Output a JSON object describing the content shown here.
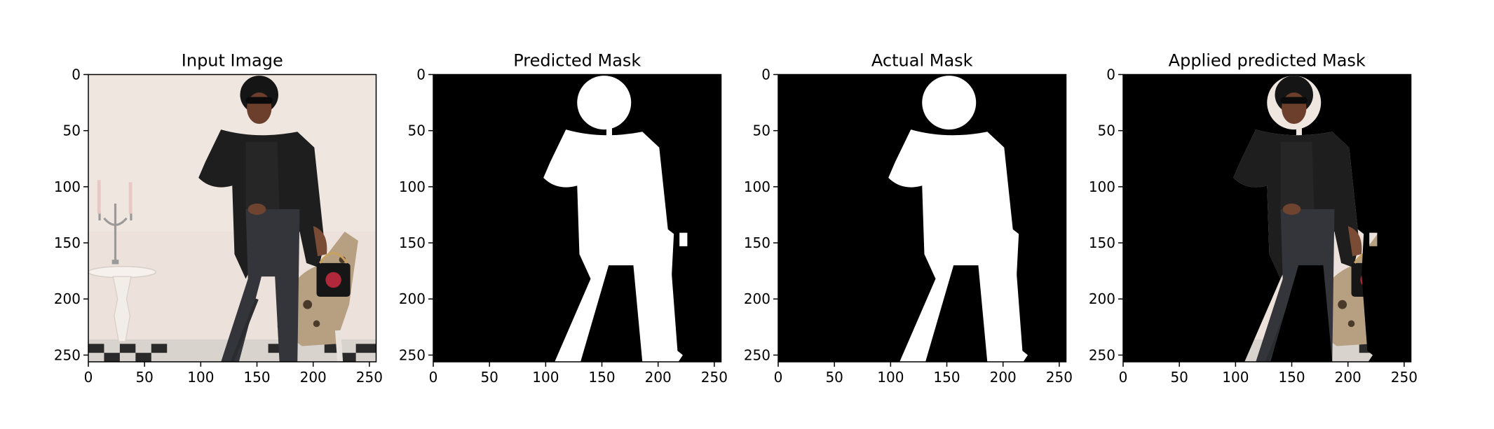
{
  "chart_data": [
    {
      "type": "image",
      "title": "Input Image",
      "xlabel": "",
      "ylabel": "",
      "xlim": [
        0,
        256
      ],
      "ylim": [
        256,
        0
      ],
      "xticks": [
        0,
        50,
        100,
        150,
        200,
        250
      ],
      "yticks": [
        0,
        50,
        100,
        150,
        200,
        250
      ],
      "content": "photo"
    },
    {
      "type": "image",
      "title": "Predicted Mask",
      "xlabel": "",
      "ylabel": "",
      "xlim": [
        0,
        256
      ],
      "ylim": [
        256,
        0
      ],
      "xticks": [
        0,
        50,
        100,
        150,
        200,
        250
      ],
      "yticks": [
        0,
        50,
        100,
        150,
        200,
        250
      ],
      "content": "binary-mask"
    },
    {
      "type": "image",
      "title": "Actual Mask",
      "xlabel": "",
      "ylabel": "",
      "xlim": [
        0,
        256
      ],
      "ylim": [
        256,
        0
      ],
      "xticks": [
        0,
        50,
        100,
        150,
        200,
        250
      ],
      "yticks": [
        0,
        50,
        100,
        150,
        200,
        250
      ],
      "content": "binary-mask"
    },
    {
      "type": "image",
      "title": "Applied predicted Mask",
      "xlabel": "",
      "ylabel": "",
      "xlim": [
        0,
        256
      ],
      "ylim": [
        256,
        0
      ],
      "xticks": [
        0,
        50,
        100,
        150,
        200,
        250
      ],
      "yticks": [
        0,
        50,
        100,
        150,
        200,
        250
      ],
      "content": "masked-photo"
    }
  ],
  "colors": {
    "mask_foreground": "#ffffff",
    "mask_background": "#000000",
    "photo_wall": "#ece0da",
    "clothing": "#1f1f1f",
    "skin": "#7a4b35"
  }
}
